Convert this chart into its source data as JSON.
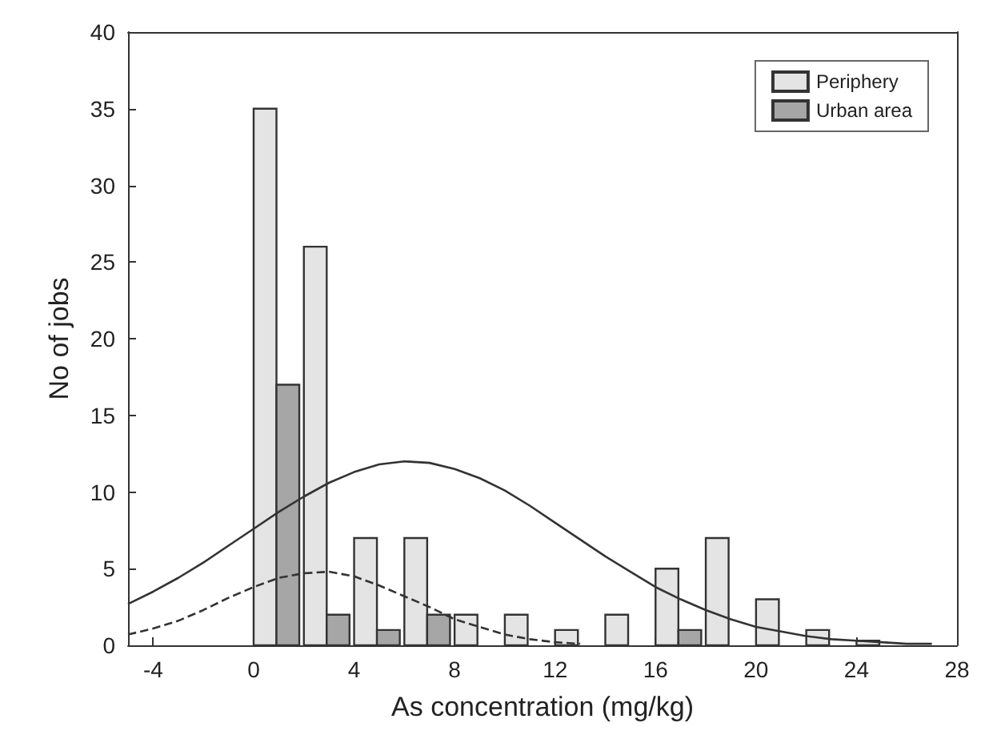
{
  "chart_data": {
    "type": "histogram",
    "xlabel": "As concentration (mg/kg)",
    "ylabel": "No of jobs",
    "xlim": [
      -5,
      28
    ],
    "xticks": [
      -4,
      0,
      4,
      8,
      12,
      16,
      20,
      24,
      28
    ],
    "ylim": [
      0,
      40
    ],
    "yticks": [
      0,
      5,
      10,
      15,
      20,
      25,
      30,
      35,
      40
    ],
    "legend": "top right",
    "grid": false,
    "series": [
      {
        "name": "Periphery",
        "color": "#e4e4e4",
        "bins": [
          0,
          2,
          4,
          6,
          8,
          10,
          12,
          14,
          16,
          18,
          20,
          22,
          24,
          26
        ],
        "values": [
          35,
          26,
          7,
          7,
          2,
          2,
          1,
          2,
          5,
          7,
          3,
          1,
          0.3
        ]
      },
      {
        "name": "Urban area",
        "color": "#a6a6a6",
        "bins": [
          0,
          2,
          4,
          6,
          8,
          10,
          12,
          14,
          16,
          18,
          20,
          22,
          24,
          26
        ],
        "values": [
          17,
          2,
          1,
          2,
          0,
          0,
          0,
          0,
          1,
          0,
          0,
          0,
          0
        ]
      },
      {
        "type": "line",
        "color": "#333333",
        "line_style": "solid",
        "x": [
          -5,
          -4,
          -3,
          -2,
          -1,
          0,
          1,
          2,
          3,
          4,
          5,
          6,
          7,
          8,
          9,
          10,
          11,
          12,
          13,
          14,
          15,
          16,
          17,
          18,
          19,
          20,
          21,
          22,
          23,
          24,
          25,
          26,
          27
        ],
        "values": [
          2.7,
          3.5,
          4.4,
          5.4,
          6.5,
          7.6,
          8.7,
          9.7,
          10.6,
          11.3,
          11.8,
          12,
          11.9,
          11.5,
          10.9,
          10.1,
          9.1,
          8,
          6.9,
          5.8,
          4.8,
          3.8,
          3,
          2.3,
          1.7,
          1.2,
          0.9,
          0.6,
          0.4,
          0.3,
          0.2,
          0.1,
          0.1
        ]
      },
      {
        "type": "line",
        "color": "#333333",
        "line_style": "dashed",
        "x": [
          -5,
          -4,
          -3,
          -2,
          -1,
          0,
          1,
          2,
          3,
          4,
          5,
          6,
          7,
          8,
          9,
          10,
          11,
          12,
          13
        ],
        "values": [
          0.7,
          1.1,
          1.6,
          2.3,
          3.1,
          3.8,
          4.4,
          4.7,
          4.8,
          4.5,
          3.9,
          3.2,
          2.5,
          1.7,
          1.2,
          0.7,
          0.4,
          0.2,
          0.1
        ]
      }
    ]
  }
}
